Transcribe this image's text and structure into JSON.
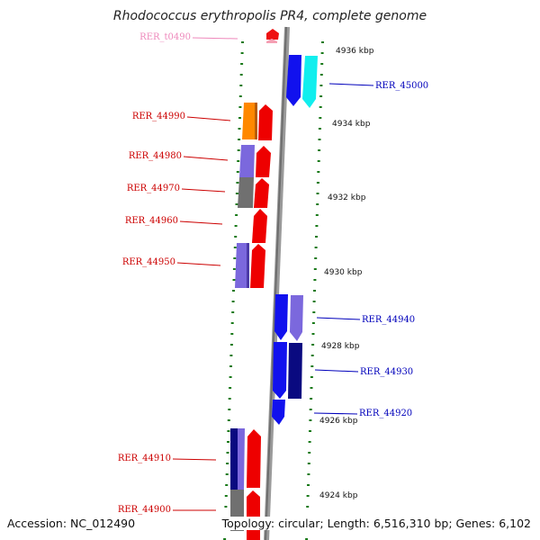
{
  "title": "Rhodococcus erythropolis PR4, complete genome",
  "footer": {
    "accession": "Accession: NC_012490",
    "info": "Topology: circular; Length: 6,516,310 bp; Genes: 6,102"
  },
  "colors": {
    "backbone": "#888888",
    "dots": "#1a7a1a",
    "reverse_label": "#cc0000",
    "forward_label": "#0000bb",
    "trna_label": "#ee88bb"
  },
  "scale_ticks": [
    "4936 kbp",
    "4934 kbp",
    "4932 kbp",
    "4930 kbp",
    "4928 kbp",
    "4926 kbp",
    "4924 kbp"
  ],
  "gene_labels": {
    "rer_t0490": "RER_t0490",
    "rer_45000": "RER_45000",
    "rer_44990": "RER_44990",
    "rer_44980": "RER_44980",
    "rer_44970": "RER_44970",
    "rer_44960": "RER_44960",
    "rer_44950": "RER_44950",
    "rer_44940": "RER_44940",
    "rer_44930": "RER_44930",
    "rer_44920": "RER_44920",
    "rer_44910": "RER_44910",
    "rer_44900": "RER_44900"
  }
}
